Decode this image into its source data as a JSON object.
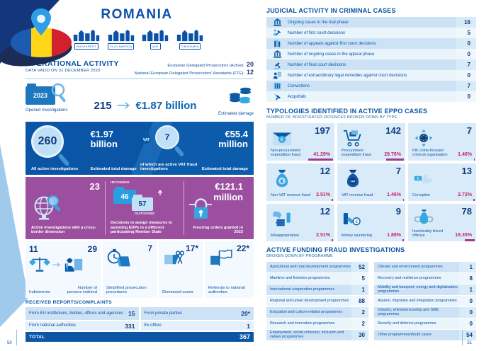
{
  "colors": {
    "navy": "#0b51a8",
    "band_blue": "#0a58a8",
    "purple": "#9b4f9e",
    "magenta": "#c22567",
    "light_row": "#cde3f5",
    "lighter_row": "#e9f4fb",
    "tile": "#d9ebf9"
  },
  "page_left": {
    "page_number": "50",
    "title": "ROMANIA",
    "cities": [
      "BUCHAREST",
      "CLUJ-NAPOCA",
      "IASI",
      "TIMISOARA"
    ],
    "section_title": "OPERATIONAL ACTIVITY",
    "data_valid": "DATA VALID ON 31 DECEMBER 2023",
    "prosecutors": [
      {
        "label": "European Delegated Prosecutors (Active):",
        "value": "20"
      },
      {
        "label": "National European Delegated Prosecutors' Assistants (FTE):",
        "value": "12"
      }
    ],
    "opened": {
      "year": "2023",
      "count": "215",
      "amount": "€1.87 billion",
      "label": "Opened investigations",
      "damage_label": "Estimated damage"
    },
    "active_band": {
      "investigations": "260",
      "investigations_label": "All active investigations",
      "damage": "€1.97 billion",
      "damage_label": "Estimated total damage",
      "vat_badge": "VAT",
      "vat_count": "7",
      "vat_label": "of which are active VAT fraud investigations",
      "vat_damage": "€55.4 million",
      "vat_damage_label": "Estimated total damage"
    },
    "crossborder_band": {
      "count": "23",
      "label": "Active investigations with a cross-border dimension",
      "incoming_label": "INCOMING",
      "incoming": "46",
      "outgoing": "57",
      "outgoing_label": "OUTGOING",
      "decisions_label": "Decisions to assign measures to assisting EDPs in a different participating Member State",
      "freezing_amount": "€121.1 million",
      "freezing_label": "Freezing orders granted in 2023"
    },
    "outcomes": {
      "indictments": {
        "value": "11",
        "label": "Indictments"
      },
      "persons": {
        "value": "29",
        "label": "Number of persons indicted"
      },
      "simplified": {
        "value": "7",
        "label": "Simplified prosecution procedures"
      },
      "dismissed": {
        "value": "17*",
        "label": "Dismissed cases"
      },
      "referrals": {
        "value": "22*",
        "label": "Referrals to national authorities"
      }
    },
    "reports": {
      "title": "RECEIVED REPORTS/COMPLAINTS",
      "cells": [
        {
          "label": "From EU institutions, bodies, offices and agencies",
          "value": "15"
        },
        {
          "label": "From private parties",
          "value": "20*"
        },
        {
          "label": "From national authorities",
          "value": "331"
        },
        {
          "label": "Ex officio",
          "value": "1"
        }
      ],
      "total_label": "TOTAL",
      "total_value": "367"
    }
  },
  "page_right": {
    "page_number": "51",
    "judicial": {
      "title": "JUDICIAL ACTIVITY IN CRIMINAL CASES",
      "rows": [
        {
          "icon": "courthouse",
          "label": "Ongoing cases in the trial phase",
          "value": "16"
        },
        {
          "icon": "gavel-person",
          "label": "Number of first court decisions",
          "value": "5"
        },
        {
          "icon": "law-books",
          "label": "Number of appeals against first court decisions",
          "value": "0"
        },
        {
          "icon": "courthouse",
          "label": "Number of ongoing cases in the appeal phase",
          "value": "0"
        },
        {
          "icon": "gavel",
          "label": "Number of final court decisions",
          "value": "7"
        },
        {
          "icon": "person-doc",
          "label": "Number of extraordinary legal remedies against court decisions",
          "value": "0"
        },
        {
          "icon": "prison",
          "label": "Convictions",
          "value": "7"
        },
        {
          "icon": "gavel-release",
          "label": "Acquittals",
          "value": "0"
        }
      ]
    },
    "typologies": {
      "title": "TYPOLOGIES IDENTIFIED IN ACTIVE EPPO CASES",
      "subtitle": "NUMBER OF INVESTIGATED OFFENCES BROKEN DOWN BY TYPE",
      "tiles": [
        {
          "icon": "envelope-money",
          "label": "Non-procurement expenditure fraud",
          "value": "197",
          "pct": "41.29%"
        },
        {
          "icon": "cart-money",
          "label": "Procurement expenditure fraud",
          "value": "142",
          "pct": "29.76%"
        },
        {
          "icon": "eu-organisation",
          "label": "PIF crime-focused criminal organisation",
          "value": "7",
          "pct": "1.46%"
        },
        {
          "icon": "moneybag-euro",
          "label": "Non-VAT revenue fraud",
          "value": "12",
          "pct": "2.51%"
        },
        {
          "icon": "moneybag-vat",
          "label": "VAT revenue fraud",
          "value": "7",
          "pct": "1.46%"
        },
        {
          "icon": "hand-money",
          "label": "Corruption",
          "value": "13",
          "pct": "2.72%"
        },
        {
          "icon": "hand-grab-money",
          "label": "Misappropriation",
          "value": "12",
          "pct": "2.51%"
        },
        {
          "icon": "money-laundering",
          "label": "Money laundering",
          "value": "9",
          "pct": "1.88%"
        },
        {
          "icon": "chain-moneybag",
          "label": "Inextricably linked offence",
          "value": "78",
          "pct": "16.35%"
        }
      ]
    },
    "funding": {
      "title": "ACTIVE FUNDING FRAUD INVESTIGATIONS",
      "subtitle": "BROKEN DOWN BY PROGRAMME",
      "left": [
        {
          "label": "Agricultural and rural development programmes",
          "value": "52"
        },
        {
          "label": "Maritime and fisheries programmes",
          "value": "5"
        },
        {
          "label": "International cooperation programmes",
          "value": "1"
        },
        {
          "label": "Regional and urban development programmes",
          "value": "88"
        },
        {
          "label": "Education and culture-related programmes",
          "value": "2"
        },
        {
          "label": "Research and innovation programmes",
          "value": "2"
        },
        {
          "label": "Employment, social cohesion, inclusion and values programmes",
          "value": "30"
        }
      ],
      "right": [
        {
          "label": "Climate and environment programmes",
          "value": "1"
        },
        {
          "label": "Recovery and resilience programmes",
          "value": "8"
        },
        {
          "label": "Mobility and transport, energy and digitalisation programmes",
          "value": "1"
        },
        {
          "label": "Asylum, migration and integration programmes",
          "value": "0"
        },
        {
          "label": "Industry, entrepreneurship and SME programmes",
          "value": "0"
        },
        {
          "label": "Security and defence programmes",
          "value": "0"
        },
        {
          "label": "Other programmes/doubt cases",
          "value": "54"
        }
      ]
    }
  }
}
